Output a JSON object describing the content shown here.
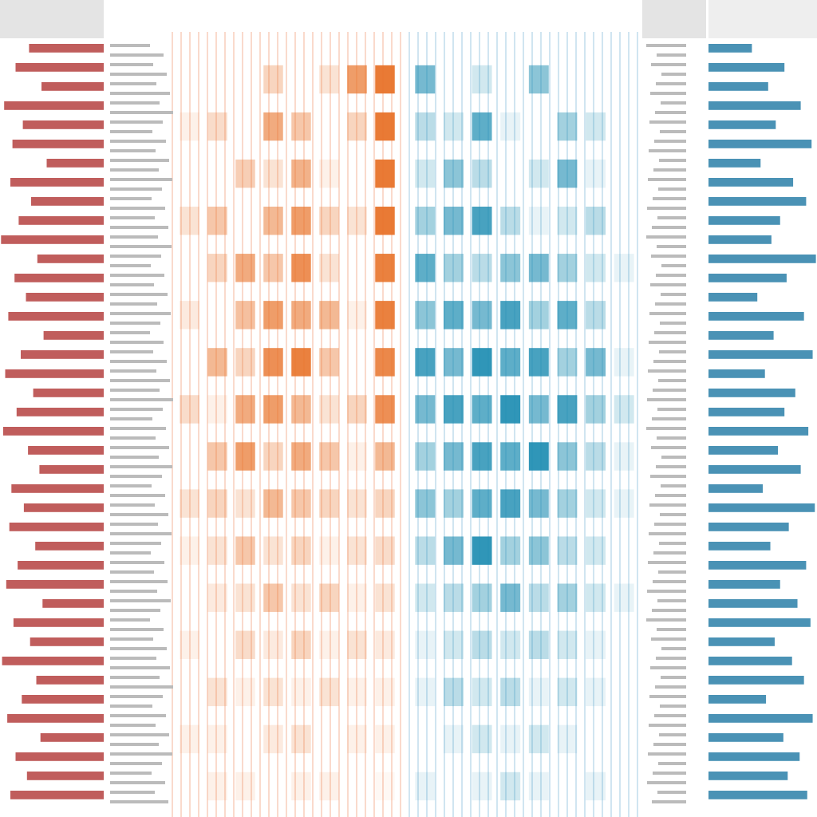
{
  "chart_data": [
    {
      "type": "hbar-left",
      "color": "#b5413f",
      "xlim": [
        0,
        100
      ],
      "values": [
        72,
        85,
        60,
        96,
        78,
        88,
        55,
        90,
        70,
        82,
        99,
        64,
        86,
        75,
        92,
        58,
        80,
        95,
        68,
        84,
        97,
        73,
        62,
        89,
        77,
        91,
        66,
        83,
        94,
        59,
        87,
        71,
        98,
        65,
        79,
        93,
        61,
        85,
        74,
        90
      ]
    },
    {
      "type": "heatmap",
      "color": "#e8732a",
      "zlim": [
        0,
        100
      ],
      "values": [
        [
          0,
          0,
          0,
          30,
          0,
          20,
          70,
          95
        ],
        [
          10,
          25,
          0,
          60,
          40,
          0,
          30,
          95
        ],
        [
          0,
          0,
          35,
          20,
          55,
          10,
          0,
          95
        ],
        [
          20,
          40,
          0,
          50,
          70,
          30,
          20,
          95
        ],
        [
          0,
          30,
          60,
          40,
          80,
          20,
          0,
          90
        ],
        [
          15,
          0,
          45,
          70,
          60,
          50,
          10,
          90
        ],
        [
          0,
          50,
          30,
          80,
          90,
          40,
          0,
          85
        ],
        [
          25,
          10,
          60,
          70,
          50,
          20,
          30,
          80
        ],
        [
          0,
          40,
          70,
          30,
          60,
          40,
          10,
          50
        ],
        [
          20,
          30,
          20,
          50,
          40,
          30,
          20,
          30
        ],
        [
          10,
          20,
          40,
          20,
          30,
          10,
          20,
          25
        ],
        [
          0,
          15,
          20,
          40,
          20,
          30,
          10,
          20
        ],
        [
          10,
          0,
          25,
          15,
          30,
          10,
          20,
          15
        ],
        [
          0,
          20,
          10,
          20,
          10,
          20,
          10,
          10
        ],
        [
          10,
          10,
          0,
          15,
          20,
          0,
          10,
          10
        ],
        [
          0,
          10,
          10,
          0,
          10,
          10,
          0,
          5
        ]
      ]
    },
    {
      "type": "heatmap",
      "color": "#1a8bb0",
      "zlim": [
        0,
        100
      ],
      "values": [
        [
          60,
          0,
          20,
          0,
          50,
          0,
          0,
          0
        ],
        [
          30,
          20,
          70,
          10,
          0,
          40,
          20,
          0
        ],
        [
          20,
          50,
          30,
          0,
          20,
          60,
          10,
          0
        ],
        [
          40,
          60,
          80,
          30,
          10,
          20,
          30,
          0
        ],
        [
          70,
          40,
          30,
          50,
          60,
          40,
          20,
          10
        ],
        [
          50,
          70,
          60,
          80,
          40,
          70,
          30,
          0
        ],
        [
          80,
          60,
          90,
          70,
          80,
          40,
          60,
          10
        ],
        [
          60,
          80,
          70,
          90,
          60,
          80,
          40,
          20
        ],
        [
          40,
          60,
          80,
          70,
          90,
          50,
          30,
          10
        ],
        [
          50,
          40,
          70,
          80,
          60,
          40,
          20,
          10
        ],
        [
          30,
          60,
          90,
          40,
          50,
          30,
          20,
          0
        ],
        [
          20,
          30,
          40,
          60,
          30,
          40,
          20,
          10
        ],
        [
          10,
          20,
          30,
          20,
          30,
          20,
          10,
          0
        ],
        [
          10,
          30,
          20,
          30,
          10,
          20,
          10,
          0
        ],
        [
          0,
          10,
          20,
          10,
          20,
          10,
          0,
          0
        ],
        [
          10,
          0,
          10,
          20,
          10,
          0,
          10,
          0
        ]
      ]
    },
    {
      "type": "hbar-right",
      "color": "#2a7fa8",
      "xlim": [
        0,
        100
      ],
      "values": [
        40,
        70,
        55,
        85,
        62,
        95,
        48,
        78,
        90,
        66,
        58,
        99,
        72,
        45,
        88,
        60,
        96,
        52,
        80,
        70,
        92,
        64,
        85,
        50,
        98,
        74,
        57,
        90,
        66,
        82,
        94,
        61,
        77,
        88,
        53,
        96,
        69,
        84,
        73,
        91
      ]
    }
  ]
}
